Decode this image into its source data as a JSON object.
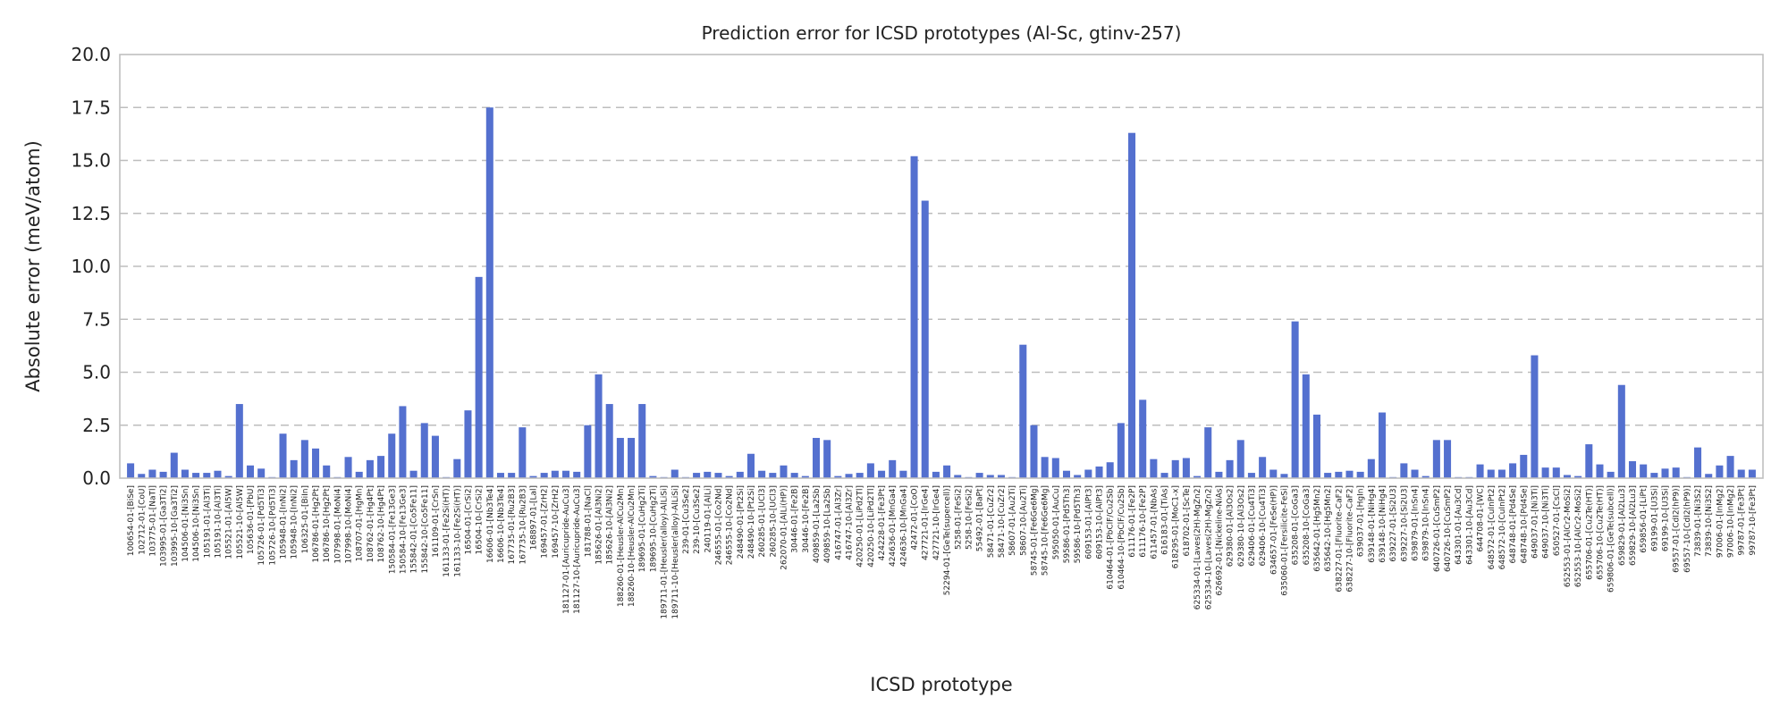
{
  "chart_data": {
    "type": "bar",
    "title": "Prediction error for ICSD prototypes (Al-Sc, gtinv-257)",
    "xlabel": "ICSD prototype",
    "ylabel": "Absolute error (meV/atom)",
    "ylim": [
      0,
      20
    ],
    "yticks": [
      "0.0",
      "2.5",
      "5.0",
      "7.5",
      "10.0",
      "12.5",
      "15.0",
      "17.5",
      "20.0"
    ],
    "grid": "y",
    "bar_color": "#5470cf",
    "categories": [
      "100654-01-[BiSe]",
      "102712-01-[CoU]",
      "103775-01-[NaTl]",
      "103995-01-[Ga3Ti2]",
      "103995-10-[Ga3Ti2]",
      "104506-01-[Ni3Sn]",
      "104506-10-[Ni3Sn]",
      "105191-01-[Al3Ti]",
      "105191-10-[Al3Ti]",
      "105521-01-[Al5W]",
      "105521-10-[Al5W]",
      "105636-01-[PbU]",
      "105726-01-[Pd5Ti3]",
      "105726-10-[Pd5Ti3]",
      "105948-01-[InNi2]",
      "105948-10-[InNi2]",
      "106325-01-[BiIn]",
      "106786-01-[Hg2Pt]",
      "106786-10-[Hg2Pt]",
      "107998-01-[MoNi4]",
      "107998-10-[MoNi4]",
      "108707-01-[HgMn]",
      "108762-01-[Hg4Pt]",
      "108762-10-[Hg4Pt]",
      "150584-01-[Fe13Ge3]",
      "150584-10-[Fe13Ge3]",
      "155842-01-[Co5Fe11]",
      "155842-10-[Co5Fe11]",
      "161109-01-[CrSn]",
      "161133-01-[Fe2Si(HT)]",
      "161133-10-[Fe2Si(HT)]",
      "16504-01-[CrSi2]",
      "16504-10-[CrSi2]",
      "16606-01-[Nb3Te4]",
      "16606-10-[Nb3Te4]",
      "167735-01-[Ru2B3]",
      "167735-10-[Ru2B3]",
      "168897-01-[Lal]",
      "169457-01-[ZrH2]",
      "169457-10-[ZrH2]",
      "181127-01-[Auricupride-AuCu3]",
      "181127-10-[Auricupride-AuCu3]",
      "181788-01-[NaCl]",
      "185626-01-[Al3Ni2]",
      "185626-10-[Al3Ni2]",
      "188260-01-[Heusler-AlCu2Mn]",
      "188260-10-[Heusler-AlCu2Mn]",
      "189695-01-[CuHg2Ti]",
      "189695-10-[CuHg2Ti]",
      "189711-01-[Heusler(alloy)-AlLiSi]",
      "189711-10-[Heusler(alloy)-AlLiSi]",
      "239-01-[Cu3Se2]",
      "239-10-[Cu3Se2]",
      "240119-01-[AlLi]",
      "246555-01-[Co2Nd]",
      "246555-10-[Co2Nd]",
      "248490-01-[Pt2Si]",
      "248490-10-[Pt2Si]",
      "260285-01-[UCl3]",
      "260285-10-[UCl3]",
      "262070-01-[AlLi(HP)]",
      "30446-01-[Fe2B]",
      "30446-10-[Fe2B]",
      "409859-01-[La2Sb]",
      "409859-10-[La2Sb]",
      "416747-01-[Al3Zr]",
      "416747-10-[Al3Zr]",
      "420250-01-[LiPd2Tl]",
      "420250-10-[LiPd2Tl]",
      "424228-01-[Fe3Pt]",
      "424636-01-[MnGa4]",
      "424636-10-[MnGa4]",
      "42472-01-[CoO]",
      "427721-01-[IrGe4]",
      "427721-10-[IrGe4]",
      "52294-01-[GeTe(supercell)]",
      "5258-01-[FeSi2]",
      "5258-10-[FeSi2]",
      "55492-01-[BaPt]",
      "58471-01-[CuZr2]",
      "58471-10-[CuZr2]",
      "58607-01-[Au2Ti]",
      "58607-10-[Au2Ti]",
      "58745-01-[Fe6Ge6Mg]",
      "58745-10-[Fe6Ge6Mg]",
      "595050-01-[AuCu]",
      "59586-01-[Pd5Th3]",
      "59586-10-[Pd5Th3]",
      "609153-01-[AlPt3]",
      "609153-10-[AlPt3]",
      "610464-01-[PbClF/Cu2Sb]",
      "610464-10-[PbClF/Cu2Sb]",
      "611176-01-[Fe2P]",
      "611176-10-[Fe2P]",
      "611457-01-[NbAs]",
      "616183-01-[TiAs]",
      "618295-01-[MoC1-x]",
      "618702-01-[ScTe]",
      "625334-01-[Laves(2H)-MgZn2]",
      "625334-10-[Laves(2H)-MgZn2]",
      "626692-01-[Nickeline-NiAs]",
      "629380-01-[Al3Os2]",
      "629380-10-[Al3Os2]",
      "629406-01-[Cu4Ti3]",
      "629406-10-[Cu4Ti3]",
      "634657-01-[FeSe(HP)]",
      "635060-01-[Fersilicite-FeSi]",
      "635208-01-[CoGa3]",
      "635208-10-[CoGa3]",
      "635642-01-[Hg5Mn2]",
      "635642-10-[Hg5Mn2]",
      "638227-01-[Fluorite-CaF2]",
      "638227-10-[Fluorite-CaF2]",
      "639037-01-[HgIn]",
      "639148-01-[NiHg4]",
      "639148-10-[NiHg4]",
      "639227-01-[Si2U3]",
      "639227-10-[Si2U3]",
      "639879-01-[InSn4]",
      "639879-10-[InSn4]",
      "640726-01-[CuSmP2]",
      "640726-10-[CuSmP2]",
      "643301-01-[Au3Cd]",
      "643301-10-[Au3Cd]",
      "644708-01-[WC]",
      "648572-01-[CuInPt2]",
      "648572-10-[CuInPt2]",
      "648748-01-[Pd4Se]",
      "648748-10-[Pd4Se]",
      "649037-01-[Ni3Ti]",
      "649037-10-[Ni3Ti]",
      "650527-01-[CsCl]",
      "652553-01-[AlCr2-MoSi2]",
      "652553-10-[AlCr2-MoSi2]",
      "655706-01-[Cu2Te(HT)]",
      "655706-10-[Cu2Te(HT)]",
      "659806-01-[GeTe(subcell)]",
      "659829-01-[Al2Lu3]",
      "659829-10-[Al2Lu3]",
      "659856-01-[LiPt]",
      "69199-01-[U3Si]",
      "69199-10-[U3Si]",
      "69557-01-[CdI2(hP9)]",
      "69557-10-[CdI2(hP9)]",
      "73839-01-[Ni3S2]",
      "73839-10-[Ni3S2]",
      "97006-01-[InMg2]",
      "97006-10-[InMg2]",
      "99787-01-[Fe3Pt]",
      "99787-10-[Fe3Pt]"
    ],
    "values": [
      0.7,
      0.2,
      0.4,
      0.3,
      1.2,
      0.4,
      0.25,
      0.25,
      0.35,
      0.1,
      3.5,
      0.6,
      0.45,
      0.05,
      2.1,
      0.85,
      1.8,
      1.4,
      0.6,
      0.05,
      1.0,
      0.3,
      0.85,
      1.05,
      2.1,
      3.4,
      0.35,
      2.6,
      2.0,
      0.05,
      0.9,
      3.2,
      9.5,
      17.5,
      0.25,
      0.25,
      2.4,
      0.1,
      0.25,
      0.35,
      0.35,
      0.3,
      2.5,
      4.9,
      3.5,
      1.9,
      1.9,
      3.5,
      0.1,
      0.05,
      0.4,
      0.05,
      0.25,
      0.3,
      0.25,
      0.1,
      0.3,
      1.15,
      0.35,
      0.25,
      0.6,
      0.25,
      0.1,
      1.9,
      1.8,
      0.1,
      0.2,
      0.25,
      0.7,
      0.35,
      0.85,
      0.35,
      15.2,
      13.1,
      0.3,
      0.6,
      0.15,
      0.05,
      0.25,
      0.15,
      0.15,
      0.05,
      6.3,
      2.5,
      1.0,
      0.95,
      0.35,
      0.15,
      0.4,
      0.55,
      0.75,
      2.6,
      16.3,
      3.7,
      0.9,
      0.25,
      0.85,
      0.95,
      0.1,
      2.4,
      0.3,
      0.85,
      1.8,
      0.25,
      1.0,
      0.4,
      0.2,
      7.4,
      4.9,
      3.0,
      0.25,
      0.3,
      0.35,
      0.3,
      0.9,
      3.1,
      0.05,
      0.7,
      0.4,
      0.1,
      1.8,
      1.8,
      0.05,
      0.05,
      0.65,
      0.4,
      0.4,
      0.7,
      1.1,
      5.8,
      0.5,
      0.5,
      0.15,
      0.1,
      1.6,
      0.65,
      0.3,
      4.4,
      0.8,
      0.65,
      0.25,
      0.45,
      0.5,
      0.05,
      1.45,
      0.2,
      0.6,
      1.05,
      0.4,
      0.4
    ]
  }
}
